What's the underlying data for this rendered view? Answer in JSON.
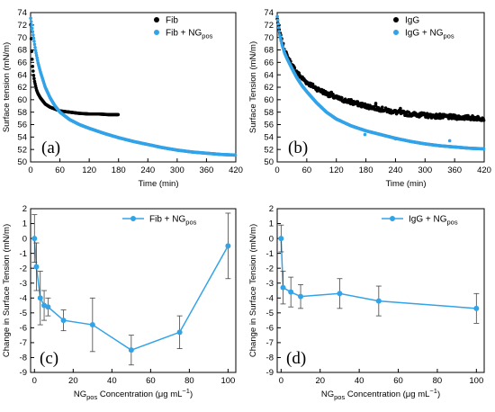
{
  "colors": {
    "black": "#000000",
    "blue": "#33a3e8",
    "axis": "#000000"
  },
  "chart_data": [
    {
      "id": "a",
      "type": "scatter",
      "panel_label": "(a)",
      "xlabel": "Time (min)",
      "ylabel": "Surface tension (mN/m)",
      "xlim": [
        0,
        420
      ],
      "ylim": [
        50,
        74
      ],
      "xticks": [
        0,
        60,
        120,
        180,
        240,
        300,
        360,
        420
      ],
      "yticks": [
        50,
        52,
        54,
        56,
        58,
        60,
        62,
        64,
        66,
        68,
        70,
        72,
        74
      ],
      "legend_position": "top-right",
      "series": [
        {
          "name": "Fib",
          "color": "#000000",
          "x": [
            0,
            2,
            4,
            6,
            8,
            10,
            12,
            15,
            20,
            25,
            30,
            40,
            50,
            60,
            80,
            100,
            120,
            140,
            160,
            180
          ],
          "y": [
            72.5,
            68.0,
            65.5,
            64.0,
            63.0,
            62.3,
            61.6,
            61.0,
            60.3,
            59.8,
            59.3,
            58.8,
            58.5,
            58.2,
            58.0,
            57.8,
            57.7,
            57.7,
            57.6,
            57.6
          ]
        },
        {
          "name_main": "Fib + NG",
          "name_sub": "pos",
          "color": "#33a3e8",
          "x": [
            0,
            5,
            10,
            15,
            20,
            30,
            40,
            50,
            60,
            80,
            100,
            120,
            150,
            180,
            210,
            240,
            270,
            300,
            330,
            360,
            390,
            420
          ],
          "y": [
            73.2,
            70.5,
            68.0,
            66.0,
            64.5,
            62.0,
            60.3,
            59.0,
            58.0,
            56.8,
            56.0,
            55.4,
            54.6,
            53.9,
            53.3,
            52.8,
            52.3,
            51.9,
            51.6,
            51.4,
            51.2,
            51.1
          ]
        }
      ]
    },
    {
      "id": "b",
      "type": "scatter",
      "panel_label": "(b)",
      "xlabel": "Time (min)",
      "ylabel": "Surface Tension (mN/m)",
      "xlim": [
        0,
        420
      ],
      "ylim": [
        50,
        74
      ],
      "xticks": [
        0,
        60,
        120,
        180,
        240,
        300,
        360,
        420
      ],
      "yticks": [
        50,
        52,
        54,
        56,
        58,
        60,
        62,
        64,
        66,
        68,
        70,
        72,
        74
      ],
      "legend_position": "top-right",
      "series": [
        {
          "name": "IgG",
          "color": "#000000",
          "x": [
            0,
            5,
            10,
            15,
            20,
            30,
            40,
            50,
            60,
            80,
            100,
            120,
            150,
            180,
            210,
            240,
            270,
            300,
            330,
            360,
            390,
            420
          ],
          "y": [
            73.0,
            70.8,
            69.2,
            68.0,
            67.0,
            65.5,
            64.4,
            63.5,
            62.8,
            61.8,
            61.0,
            60.3,
            59.6,
            59.0,
            58.5,
            58.0,
            57.7,
            57.5,
            57.3,
            57.2,
            57.1,
            57.0
          ]
        },
        {
          "name_main": "IgG + NG",
          "name_sub": "pos",
          "color": "#33a3e8",
          "x": [
            0,
            5,
            10,
            15,
            20,
            30,
            40,
            50,
            60,
            80,
            100,
            120,
            150,
            180,
            210,
            240,
            270,
            300,
            330,
            360,
            390,
            420
          ],
          "y": [
            73.5,
            70.5,
            68.8,
            67.5,
            66.6,
            65.0,
            63.5,
            62.3,
            61.3,
            59.5,
            58.0,
            56.9,
            55.8,
            55.0,
            54.4,
            53.8,
            53.3,
            52.9,
            52.6,
            52.4,
            52.2,
            52.1
          ]
        }
      ]
    },
    {
      "id": "c",
      "type": "line",
      "panel_label": "(c)",
      "xlabel_main": "NG",
      "xlabel_sub": "pos",
      "xlabel_rest": " Concentration (μg mL",
      "xlabel_sup": "−1",
      "xlabel_end": ")",
      "ylabel": "Change in Surface Tension (mN/m)",
      "xlim": [
        -2,
        104
      ],
      "ylim": [
        -9,
        2
      ],
      "xticks": [
        0,
        20,
        40,
        60,
        80,
        100
      ],
      "yticks": [
        -9,
        -8,
        -7,
        -6,
        -5,
        -4,
        -3,
        -2,
        -1,
        0,
        1,
        2
      ],
      "legend_position": "top-right",
      "series": [
        {
          "name_main": "Fib + NG",
          "name_sub": "pos",
          "color": "#33a3e8",
          "x": [
            0,
            1,
            3,
            5,
            7,
            15,
            30,
            50,
            75,
            100
          ],
          "y": [
            0.0,
            -1.9,
            -4.0,
            -4.5,
            -4.6,
            -5.5,
            -5.8,
            -7.5,
            -6.3,
            -0.5
          ],
          "err": [
            1.6,
            1.6,
            1.8,
            1.0,
            0.6,
            0.7,
            1.8,
            1.0,
            1.1,
            2.2
          ]
        }
      ]
    },
    {
      "id": "d",
      "type": "line",
      "panel_label": "(d)",
      "xlabel_main": "NG",
      "xlabel_sub": "pos",
      "xlabel_rest": " Concentration (μg mL",
      "xlabel_sup": "−1",
      "xlabel_end": ")",
      "ylabel": "Change in Surface Tension (mN/m)",
      "xlim": [
        -2,
        104
      ],
      "ylim": [
        -9,
        2
      ],
      "xticks": [
        0,
        20,
        40,
        60,
        80,
        100
      ],
      "yticks": [
        -9,
        -8,
        -7,
        -6,
        -5,
        -4,
        -3,
        -2,
        -1,
        0,
        1,
        2
      ],
      "legend_position": "top-right",
      "series": [
        {
          "name_main": "IgG + NG",
          "name_sub": "pos",
          "color": "#33a3e8",
          "x": [
            0,
            1,
            5,
            10,
            30,
            50,
            100
          ],
          "y": [
            0.0,
            -3.3,
            -3.6,
            -3.9,
            -3.7,
            -4.2,
            -4.7
          ],
          "err": [
            0.9,
            1.1,
            1.0,
            0.8,
            1.0,
            1.0,
            1.0
          ]
        }
      ]
    }
  ]
}
